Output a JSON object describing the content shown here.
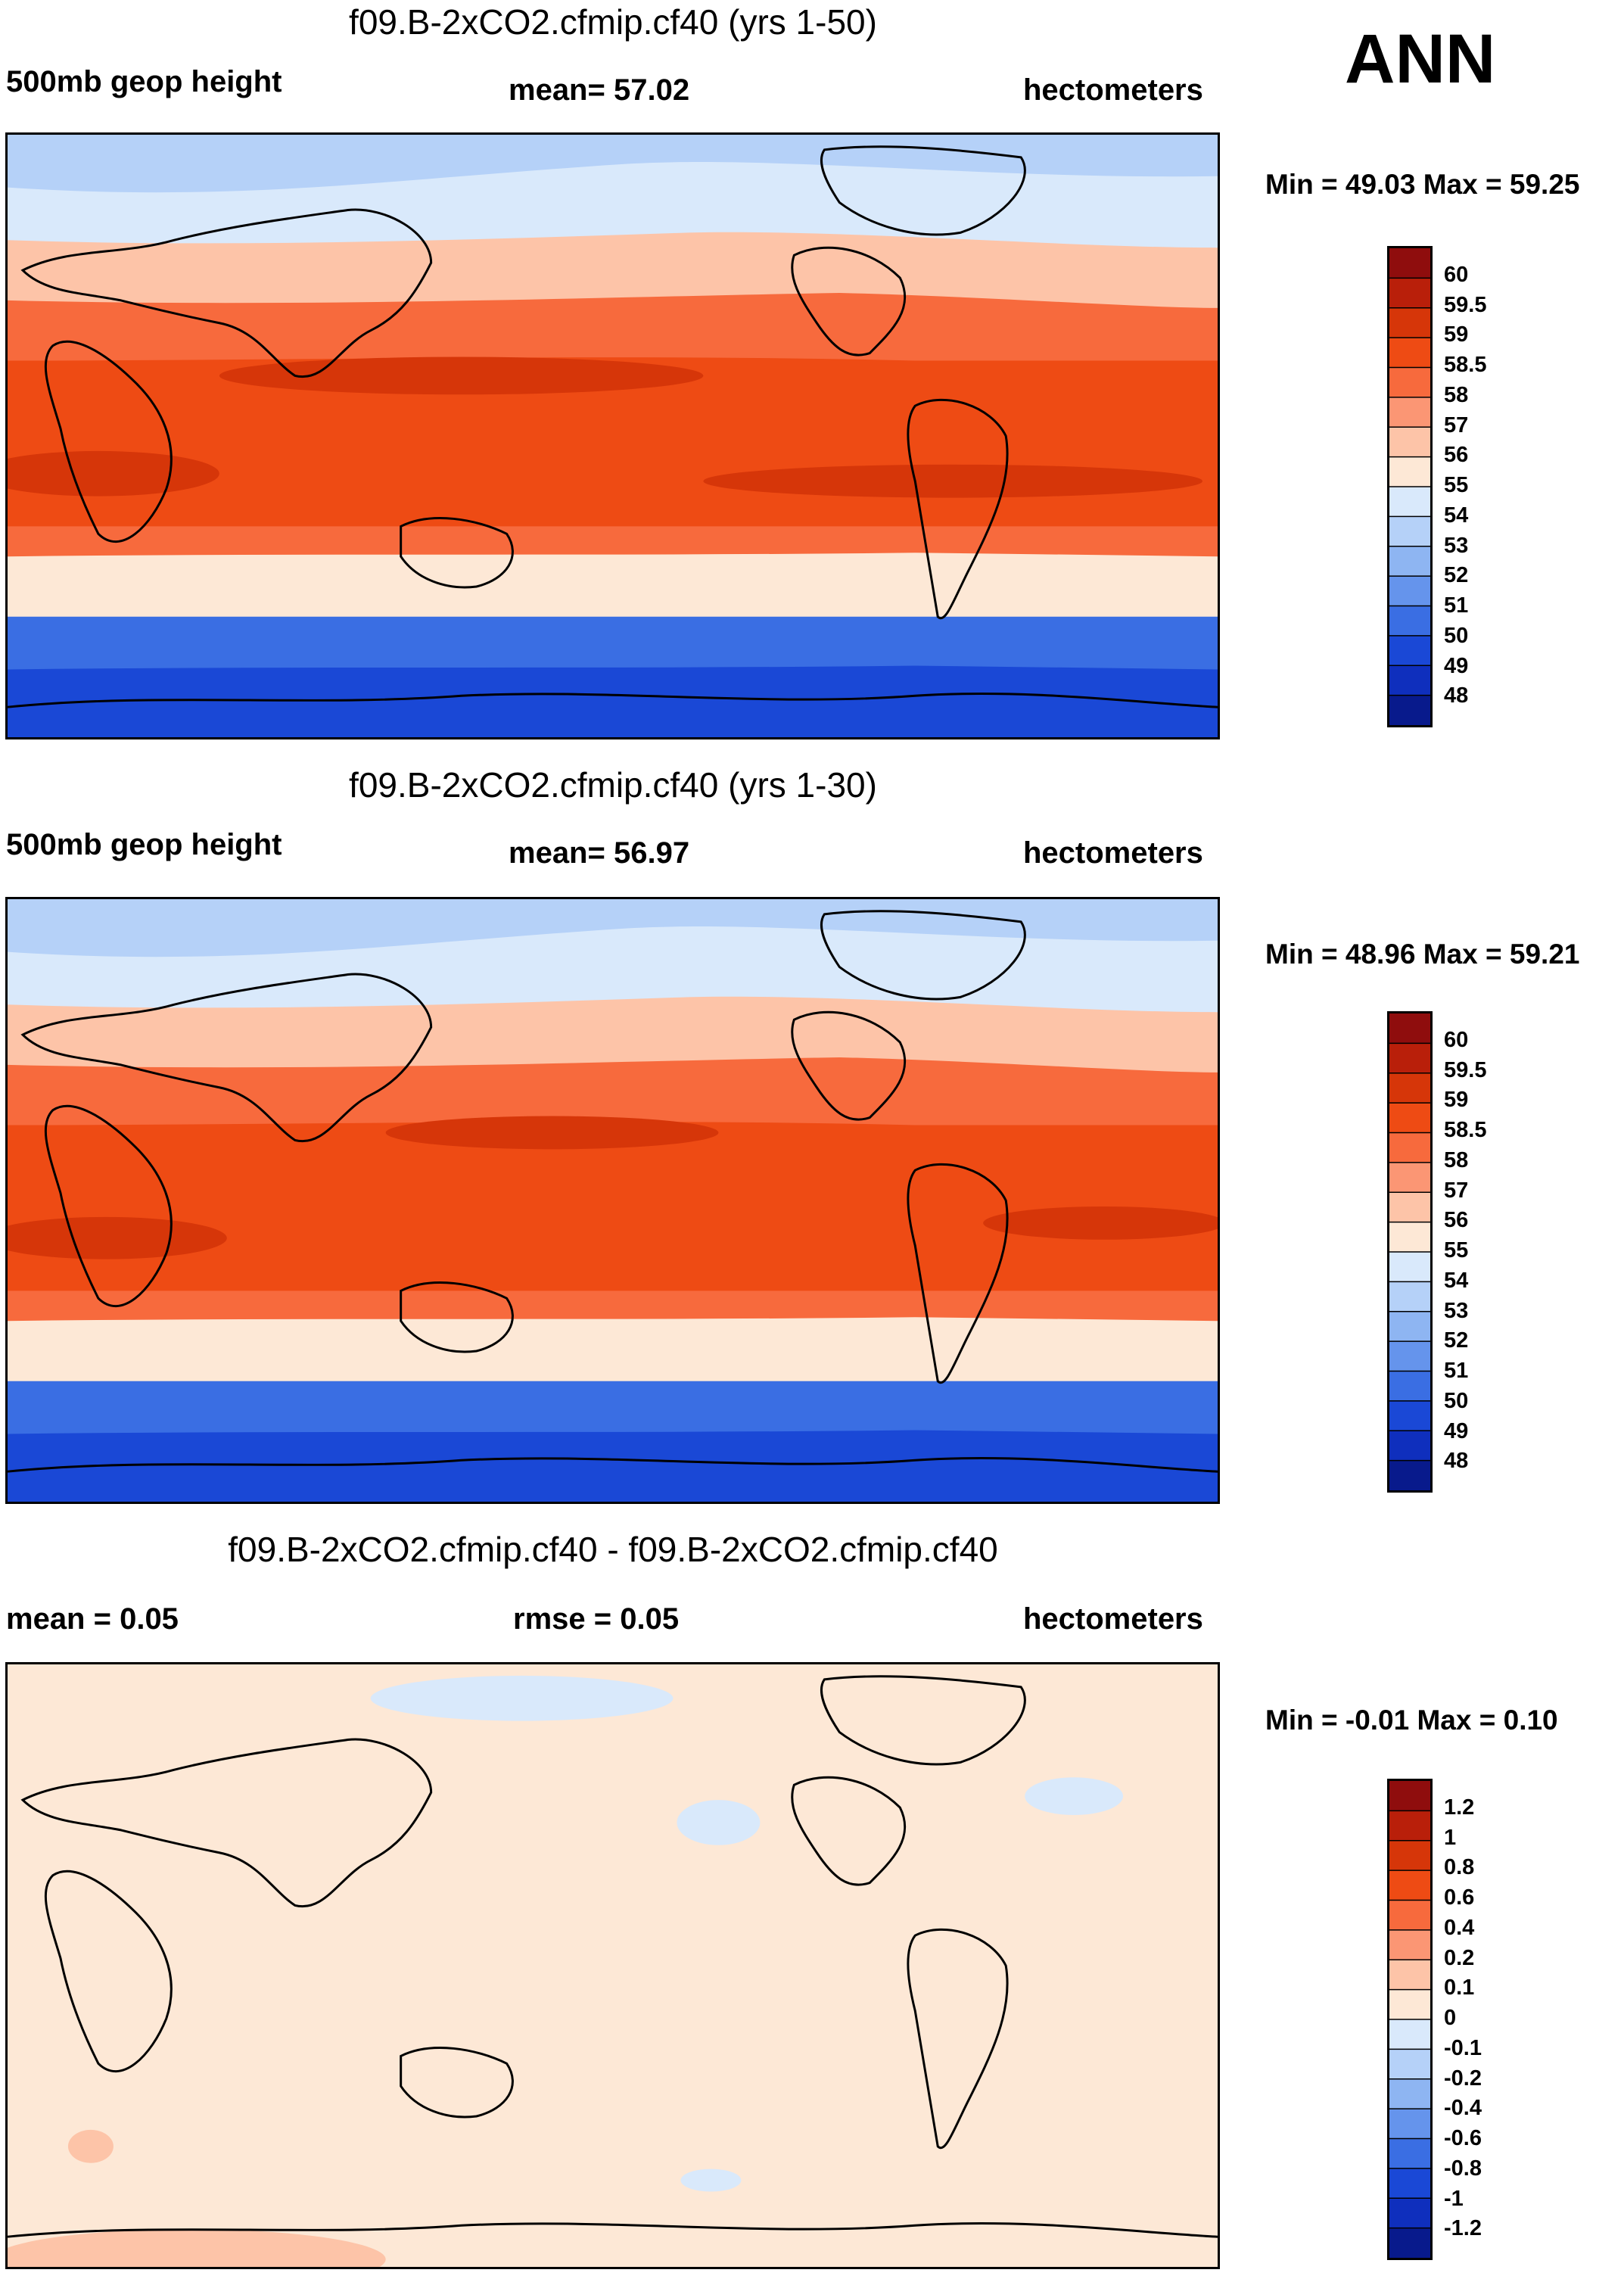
{
  "annual_label": "ANN",
  "panels": [
    {
      "title": "f09.B-2xCO2.cfmip.cf40 (yrs 1-50)",
      "left_label": "500mb geop height",
      "center_label": "mean=  57.02",
      "right_label": "hectometers",
      "minmax": "Min =  49.03 Max =  59.25",
      "colorbar_labels": [
        "60",
        "59.5",
        "59",
        "58.5",
        "58",
        "57",
        "56",
        "55",
        "54",
        "53",
        "52",
        "51",
        "50",
        "49",
        "48"
      ],
      "colorbar_colors": [
        "#8f0d0d",
        "#b91f0a",
        "#d63609",
        "#ee4b14",
        "#f76a3d",
        "#fb9674",
        "#fdc4a8",
        "#fde8d6",
        "#d9e9fb",
        "#b5d1f8",
        "#8eb5f2",
        "#6594ec",
        "#3a6ee3",
        "#1a48d6",
        "#0f2fbd",
        "#081a8c"
      ],
      "map_colors": {
        "north_pole": "#b5d1f8",
        "high_lat": "#d9e9fb",
        "mid_lat": "#fdc4a8",
        "subtrop": "#f76a3d",
        "tropics": "#ee4b14",
        "hotspots": "#d63609",
        "south_mid": "#fde8d6",
        "south_high": "#3a6ee3",
        "antarctic": "#1a48d6"
      }
    },
    {
      "title": "f09.B-2xCO2.cfmip.cf40 (yrs 1-30)",
      "left_label": "500mb geop height",
      "center_label": "mean=  56.97",
      "right_label": "hectometers",
      "minmax": "Min =  48.96 Max =  59.21",
      "colorbar_labels": [
        "60",
        "59.5",
        "59",
        "58.5",
        "58",
        "57",
        "56",
        "55",
        "54",
        "53",
        "52",
        "51",
        "50",
        "49",
        "48"
      ],
      "colorbar_colors": [
        "#8f0d0d",
        "#b91f0a",
        "#d63609",
        "#ee4b14",
        "#f76a3d",
        "#fb9674",
        "#fdc4a8",
        "#fde8d6",
        "#d9e9fb",
        "#b5d1f8",
        "#8eb5f2",
        "#6594ec",
        "#3a6ee3",
        "#1a48d6",
        "#0f2fbd",
        "#081a8c"
      ],
      "map_colors": {
        "north_pole": "#b5d1f8",
        "high_lat": "#d9e9fb",
        "mid_lat": "#fdc4a8",
        "subtrop": "#f76a3d",
        "tropics": "#ee4b14",
        "hotspots": "#d63609",
        "south_mid": "#fde8d6",
        "south_high": "#3a6ee3",
        "antarctic": "#1a48d6"
      }
    },
    {
      "title": "f09.B-2xCO2.cfmip.cf40 - f09.B-2xCO2.cfmip.cf40",
      "left_label": "mean =   0.05",
      "center_label": "rmse =   0.05",
      "right_label": "hectometers",
      "minmax": "Min =  -0.01 Max =   0.10",
      "colorbar_labels": [
        "1.2",
        "1",
        "0.8",
        "0.6",
        "0.4",
        "0.2",
        "0.1",
        "0",
        "-0.1",
        "-0.2",
        "-0.4",
        "-0.6",
        "-0.8",
        "-1",
        "-1.2"
      ],
      "colorbar_colors": [
        "#8f0d0d",
        "#b91f0a",
        "#d63609",
        "#ee4b14",
        "#f76a3d",
        "#fb9674",
        "#fdc4a8",
        "#fde8d6",
        "#d9e9fb",
        "#b5d1f8",
        "#8eb5f2",
        "#6594ec",
        "#3a6ee3",
        "#1a48d6",
        "#0f2fbd",
        "#081a8c"
      ],
      "map_colors": {
        "background": "#fde8d6",
        "neg_patch": "#d9e9fb",
        "pos_patch": "#fdc4a8"
      }
    }
  ]
}
